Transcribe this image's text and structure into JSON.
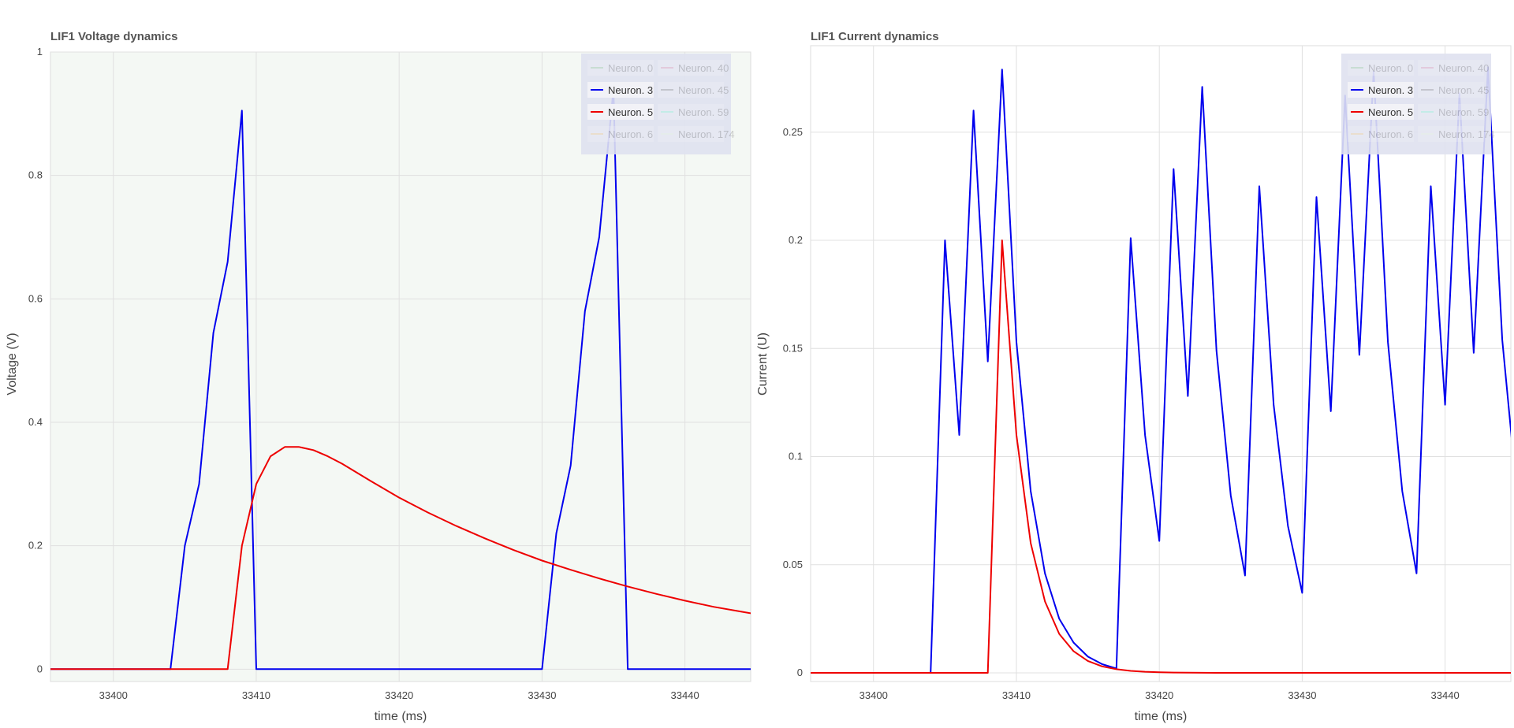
{
  "legend_entries": [
    {
      "label": "Neuron. 0",
      "color": "#8fce8f",
      "active": false
    },
    {
      "label": "Neuron. 40",
      "color": "#e58fb0",
      "active": false
    },
    {
      "label": "Neuron. 3",
      "color": "#0000ee",
      "active": true
    },
    {
      "label": "Neuron. 45",
      "color": "#808080",
      "active": false
    },
    {
      "label": "Neuron. 5",
      "color": "#ee0000",
      "active": true
    },
    {
      "label": "Neuron. 59",
      "color": "#7fffd4",
      "active": false
    },
    {
      "label": "Neuron. 6",
      "color": "#ffd27f",
      "active": false
    },
    {
      "label": "Neuron. 174",
      "color": "#f0ffe0",
      "active": false
    }
  ],
  "chart_data": [
    {
      "type": "line",
      "title": "LIF1 Voltage dynamics",
      "xlabel": "time (ms)",
      "ylabel": "Voltage (V)",
      "xlim": [
        33395.6,
        33444.6
      ],
      "ylim": [
        -0.02,
        1.0
      ],
      "xticks": [
        33400,
        33410,
        33420,
        33430,
        33440
      ],
      "yticks": [
        0,
        0.2,
        0.4,
        0.6,
        0.8,
        1
      ],
      "ytick_labels": [
        "0",
        "0.2",
        "0.4",
        "0.6",
        "0.8",
        "1"
      ],
      "background": "#f4f8f4",
      "grid": true,
      "legend_position": "top-right",
      "series": [
        {
          "name": "Neuron. 3",
          "color": "#0000ee",
          "x": [
            33395,
            33404,
            33405,
            33406,
            33407,
            33408,
            33409,
            33410,
            33411,
            33430,
            33431,
            33432,
            33433,
            33434,
            33435,
            33436,
            33437,
            33445
          ],
          "y": [
            0,
            0,
            0.2,
            0.3,
            0.545,
            0.66,
            0.905,
            0,
            0,
            0,
            0.22,
            0.33,
            0.58,
            0.7,
            0.94,
            0,
            0,
            0
          ]
        },
        {
          "name": "Neuron. 5",
          "color": "#ee0000",
          "x": [
            33395,
            33408,
            33409,
            33410,
            33411,
            33412,
            33413,
            33414,
            33415,
            33416,
            33418,
            33420,
            33422,
            33424,
            33426,
            33428,
            33430,
            33432,
            33434,
            33436,
            33438,
            33440,
            33442,
            33444,
            33445
          ],
          "y": [
            0,
            0,
            0.2,
            0.3,
            0.345,
            0.36,
            0.36,
            0.355,
            0.345,
            0.333,
            0.305,
            0.278,
            0.254,
            0.232,
            0.212,
            0.193,
            0.176,
            0.161,
            0.147,
            0.134,
            0.122,
            0.111,
            0.101,
            0.093,
            0.089
          ]
        }
      ]
    },
    {
      "type": "line",
      "title": "LIF1 Current dynamics",
      "xlabel": "time (ms)",
      "ylabel": "Current (U)",
      "xlim": [
        33395.6,
        33444.6
      ],
      "ylim": [
        -0.004,
        0.29
      ],
      "xticks": [
        33400,
        33410,
        33420,
        33430,
        33440
      ],
      "yticks": [
        0,
        0.05,
        0.1,
        0.15,
        0.2,
        0.25
      ],
      "ytick_labels": [
        "0",
        "0.05",
        "0.1",
        "0.15",
        "0.2",
        "0.25"
      ],
      "background": "#ffffff",
      "grid": true,
      "legend_position": "top-right",
      "series": [
        {
          "name": "Neuron. 3",
          "color": "#0000ee",
          "x": [
            33395,
            33404,
            33405,
            33406,
            33407,
            33408,
            33409,
            33410,
            33411,
            33412,
            33413,
            33414,
            33415,
            33416,
            33417,
            33418,
            33419,
            33420,
            33421,
            33422,
            33423,
            33424,
            33425,
            33426,
            33427,
            33428,
            33429,
            33430,
            33431,
            33432,
            33433,
            33434,
            33435,
            33436,
            33437,
            33438,
            33439,
            33440,
            33441,
            33442,
            33443,
            33444,
            33445
          ],
          "y": [
            0,
            0,
            0.2,
            0.11,
            0.26,
            0.144,
            0.279,
            0.153,
            0.084,
            0.046,
            0.025,
            0.014,
            0.0075,
            0.004,
            0.002,
            0.201,
            0.11,
            0.061,
            0.233,
            0.128,
            0.271,
            0.149,
            0.082,
            0.045,
            0.225,
            0.124,
            0.068,
            0.037,
            0.22,
            0.121,
            0.267,
            0.147,
            0.278,
            0.153,
            0.084,
            0.046,
            0.225,
            0.124,
            0.268,
            0.148,
            0.28,
            0.154,
            0.085
          ]
        },
        {
          "name": "Neuron. 5",
          "color": "#ee0000",
          "x": [
            33395,
            33408,
            33409,
            33410,
            33411,
            33412,
            33413,
            33414,
            33415,
            33416,
            33417,
            33418,
            33419,
            33420,
            33421,
            33422,
            33423,
            33424,
            33445
          ],
          "y": [
            0,
            0,
            0.2,
            0.11,
            0.06,
            0.033,
            0.018,
            0.01,
            0.0055,
            0.003,
            0.0017,
            0.0009,
            0.0005,
            0.0003,
            0.00015,
            0.0001,
            5e-05,
            0,
            0
          ]
        }
      ]
    }
  ]
}
